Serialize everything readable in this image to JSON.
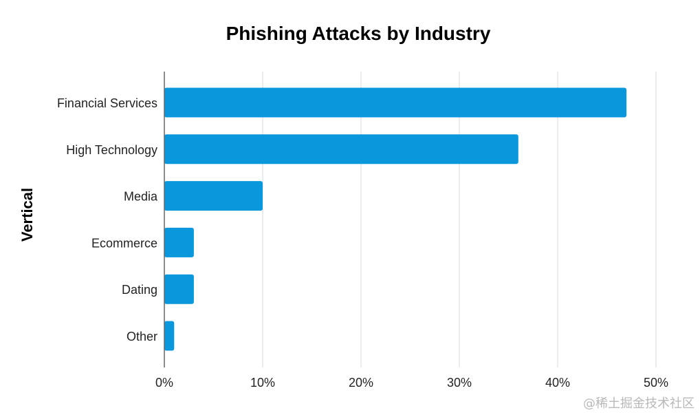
{
  "chart_data": {
    "type": "bar",
    "orientation": "horizontal",
    "title": "Phishing Attacks by Industry",
    "xlabel": "",
    "ylabel": "Vertical",
    "categories": [
      "Financial Services",
      "High Technology",
      "Media",
      "Ecommerce",
      "Dating",
      "Other"
    ],
    "values": [
      47,
      36,
      10,
      3,
      3,
      1
    ],
    "unit": "%",
    "xlim": [
      0,
      50
    ],
    "xticks": [
      "0%",
      "10%",
      "20%",
      "30%",
      "40%",
      "50%"
    ],
    "grid": true,
    "colors": {
      "bar": "#0a97dc",
      "grid": "#d9d9d9",
      "axis": "#666666"
    }
  },
  "watermark": "@稀土掘金技术社区"
}
